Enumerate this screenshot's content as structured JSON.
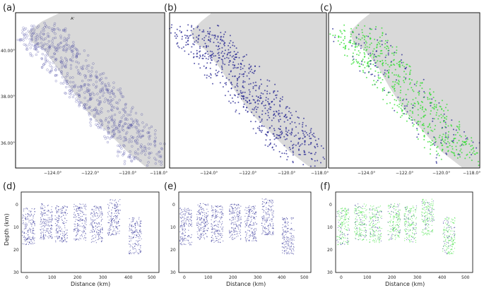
{
  "panels": {
    "map": [
      {
        "label": "(a)",
        "marker": "A'",
        "color": "#1a1a8c",
        "style": "open"
      },
      {
        "label": "(b)",
        "marker": "",
        "color": "#1a1a8c",
        "style": "dot"
      },
      {
        "label": "(c)",
        "marker": "",
        "color": "#22dd22",
        "overlay": "#1a1a8c",
        "style": "dot"
      }
    ],
    "section": [
      {
        "label": "(d)",
        "color": "#1a1a8c"
      },
      {
        "label": "(e)",
        "color": "#1a1a8c"
      },
      {
        "label": "(f)",
        "color": "#22dd22",
        "overlay": "#1a1a8c"
      }
    ]
  },
  "map_axes": {
    "lon_ticks": [
      "−124.0°",
      "−122.0°",
      "−120.0°",
      "−118.0°"
    ],
    "lat_ticks": [
      "40.00°",
      "38.00°",
      "36.00°"
    ],
    "land_color": "#d9d9d9",
    "sea_color": "#ffffff"
  },
  "section_axes": {
    "xlabel": "Distance (km)",
    "ylabel": "Depth (km)",
    "x_ticks_d": [
      "0",
      "100",
      "200",
      "300",
      "400",
      "500"
    ],
    "x_ticks": [
      "0",
      "100",
      "200",
      "300",
      "400",
      "500"
    ],
    "y_ticks": [
      "0",
      "10",
      "20",
      "30"
    ],
    "xlim": [
      -10,
      540
    ],
    "ylim": [
      30,
      -5
    ]
  },
  "chart_data": [
    {
      "type": "scatter",
      "title": "",
      "xlabel": "Distance (km)",
      "ylabel": "Depth (km)",
      "xlim": [
        -10,
        540
      ],
      "ylim": [
        30,
        -5
      ],
      "clusters": [
        {
          "x": 20,
          "depth": 10
        },
        {
          "x": 90,
          "depth": 8
        },
        {
          "x": 150,
          "depth": 9
        },
        {
          "x": 225,
          "depth": 8
        },
        {
          "x": 290,
          "depth": 9
        },
        {
          "x": 360,
          "depth": 6
        },
        {
          "x": 445,
          "depth": 14
        }
      ]
    }
  ]
}
